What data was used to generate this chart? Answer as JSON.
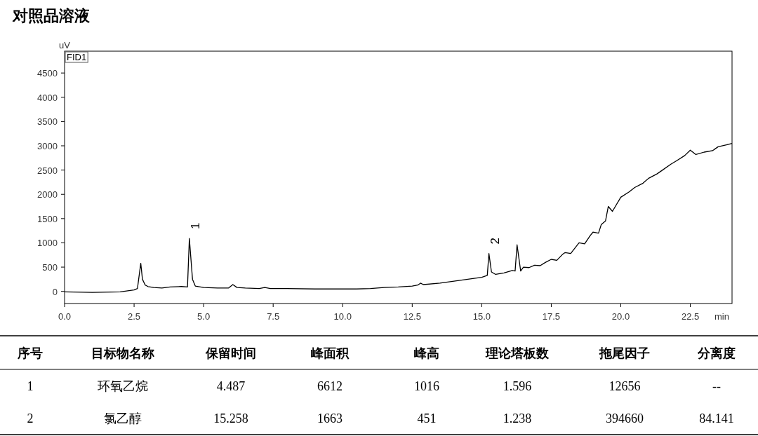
{
  "chart_data": [
    {
      "type": "line",
      "title": "对照品溶液",
      "ylabel": "uV",
      "xlabel": "min",
      "xlim": [
        0,
        24
      ],
      "ylim": [
        -250,
        4950
      ],
      "xticks": [
        {
          "value": 0,
          "label": "0.0"
        },
        2.5,
        {
          "value": 5,
          "label": "5.0"
        },
        7.5,
        {
          "value": 10,
          "label": "10.0"
        },
        12.5,
        {
          "value": 15,
          "label": "15.0"
        },
        17.5,
        {
          "value": 20,
          "label": "20.0"
        },
        22.5
      ],
      "yticks": [
        0,
        500,
        1000,
        1500,
        2000,
        2500,
        3000,
        3500,
        4000,
        4500
      ],
      "grid": false,
      "marker": "none",
      "line_style": "solid",
      "annotations": [
        "FID1",
        {
          "text": "1",
          "x": 4.487,
          "y": 1090
        },
        {
          "text": "2",
          "x": 15.258,
          "y": 780
        }
      ],
      "series": [
        {
          "color": "#000000",
          "x": [
            0,
            1.0,
            2.0,
            2.5,
            2.62,
            2.74,
            2.8,
            2.9,
            3.0,
            3.2,
            3.5,
            3.8,
            4.2,
            4.42,
            4.487,
            4.6,
            4.7,
            5.0,
            5.5,
            5.9,
            6.05,
            6.2,
            6.5,
            7.0,
            7.2,
            7.4,
            8.0,
            9.0,
            10.0,
            10.5,
            11.0,
            11.5,
            12.0,
            12.5,
            12.7,
            12.8,
            12.9,
            13.5,
            14.0,
            14.5,
            15.0,
            15.2,
            15.258,
            15.35,
            15.5,
            15.8,
            16.1,
            16.2,
            16.27,
            16.4,
            16.5,
            16.7,
            16.9,
            17.1,
            17.3,
            17.5,
            17.7,
            17.9,
            18.0,
            18.2,
            18.4,
            18.5,
            18.7,
            18.9,
            19.0,
            19.2,
            19.3,
            19.45,
            19.55,
            19.7,
            20.0,
            20.3,
            20.5,
            20.8,
            21.0,
            21.3,
            21.5,
            21.8,
            22.0,
            22.3,
            22.5,
            22.7,
            23.0,
            23.3,
            23.5,
            23.8,
            24.0
          ],
          "values": [
            -10,
            -20,
            -10,
            30,
            60,
            580,
            250,
            130,
            100,
            80,
            70,
            90,
            100,
            90,
            1090,
            250,
            110,
            80,
            70,
            70,
            140,
            80,
            70,
            60,
            80,
            60,
            60,
            50,
            50,
            50,
            60,
            80,
            90,
            110,
            130,
            170,
            140,
            170,
            210,
            250,
            290,
            330,
            780,
            400,
            350,
            380,
            430,
            420,
            960,
            420,
            500,
            490,
            540,
            530,
            600,
            660,
            640,
            760,
            800,
            780,
            930,
            1000,
            980,
            1150,
            1220,
            1200,
            1380,
            1450,
            1750,
            1650,
            1940,
            2050,
            2140,
            2230,
            2330,
            2420,
            2500,
            2620,
            2690,
            2800,
            2910,
            2820,
            2870,
            2900,
            2980,
            3020,
            3050
          ]
        }
      ]
    },
    {
      "type": "other",
      "categories": [
        "序号",
        "目标物名称",
        "保留时间",
        "峰面积",
        "峰高",
        "理论塔板数",
        "拖尾因子",
        "分离度"
      ],
      "annotations": [
        "1",
        "环氧乙烷",
        "4.487",
        "6612",
        "1016",
        "1.596",
        "12656",
        "--",
        "2",
        "氯乙醇",
        "15.258",
        "1663",
        "451",
        "1.238",
        "394660",
        "84.141"
      ]
    }
  ]
}
